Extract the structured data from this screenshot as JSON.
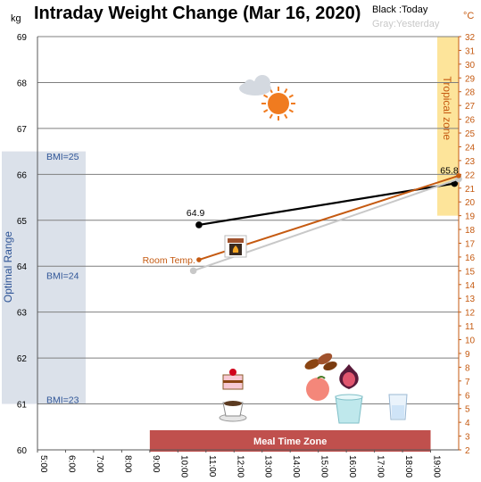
{
  "chart_data": {
    "type": "line",
    "title": "Intraday Weight Change (Mar 16, 2020)",
    "legend": [
      {
        "label": "Black :Today",
        "color": "#000000"
      },
      {
        "label": "Gray:Yesterday",
        "color": "#c8c8c8"
      }
    ],
    "y_left": {
      "unit": "kg",
      "ylim": [
        60,
        69
      ],
      "ticks": [
        "60",
        "61",
        "62",
        "63",
        "64",
        "65",
        "66",
        "67",
        "68",
        "69"
      ]
    },
    "y_right": {
      "unit": "°C",
      "ylim": [
        2,
        32
      ],
      "ticks": [
        "2",
        "3",
        "4",
        "5",
        "6",
        "7",
        "8",
        "9",
        "10",
        "11",
        "12",
        "13",
        "14",
        "15",
        "16",
        "17",
        "18",
        "19",
        "20",
        "21",
        "22",
        "23",
        "24",
        "25",
        "26",
        "27",
        "28",
        "29",
        "30",
        "31",
        "32"
      ]
    },
    "x_ticks": [
      "5:00",
      "6:00",
      "7:00",
      "8:00",
      "9:00",
      "10:00",
      "11:00",
      "12:00",
      "13:00",
      "14:00",
      "15:00",
      "16:00",
      "17:00",
      "18:00",
      "19:00"
    ],
    "x_range": [
      5,
      20
    ],
    "series": [
      {
        "name": "Today",
        "axis": "left",
        "color": "#000000",
        "points": [
          [
            10.75,
            64.9
          ],
          [
            19.85,
            65.8
          ]
        ],
        "labels": [
          "64.9",
          "65.8"
        ]
      },
      {
        "name": "Yesterday",
        "axis": "left",
        "color": "#c8c8c8",
        "points": [
          [
            10.55,
            63.9
          ],
          [
            20.0,
            65.9
          ]
        ]
      },
      {
        "name": "Room Temp.",
        "axis": "right",
        "color": "#c55a11",
        "points": [
          [
            10.75,
            15.8
          ],
          [
            20.0,
            21.9
          ]
        ],
        "label": "Room Temp."
      }
    ],
    "optimal_range": {
      "label": "Optimal Range",
      "from": 61,
      "to": 66.5,
      "bmi_labels": [
        {
          "text": "BMI=25",
          "y": 66.4
        },
        {
          "text": "BMI=24",
          "y": 63.8
        },
        {
          "text": "BMI=23",
          "y": 61.1
        }
      ]
    },
    "tropical_zone": {
      "label": "Tropical zone",
      "from_c": 19,
      "to_c": 32
    },
    "meal_zone": {
      "label": "Meal Time Zone",
      "from": 9,
      "to": 19
    },
    "icons": [
      {
        "name": "weather-icon",
        "symbol": "☁"
      },
      {
        "name": "fireplace-icon",
        "symbol": "🔥"
      },
      {
        "name": "cake-icon",
        "symbol": "🍰"
      },
      {
        "name": "coffee-icon",
        "symbol": "☕"
      },
      {
        "name": "dates-icon",
        "symbol": "●"
      },
      {
        "name": "fig-icon",
        "symbol": "●"
      },
      {
        "name": "peach-icon",
        "symbol": "●"
      },
      {
        "name": "smoothie-icon",
        "symbol": "▮"
      },
      {
        "name": "water-glass-icon",
        "symbol": "▯"
      }
    ]
  }
}
